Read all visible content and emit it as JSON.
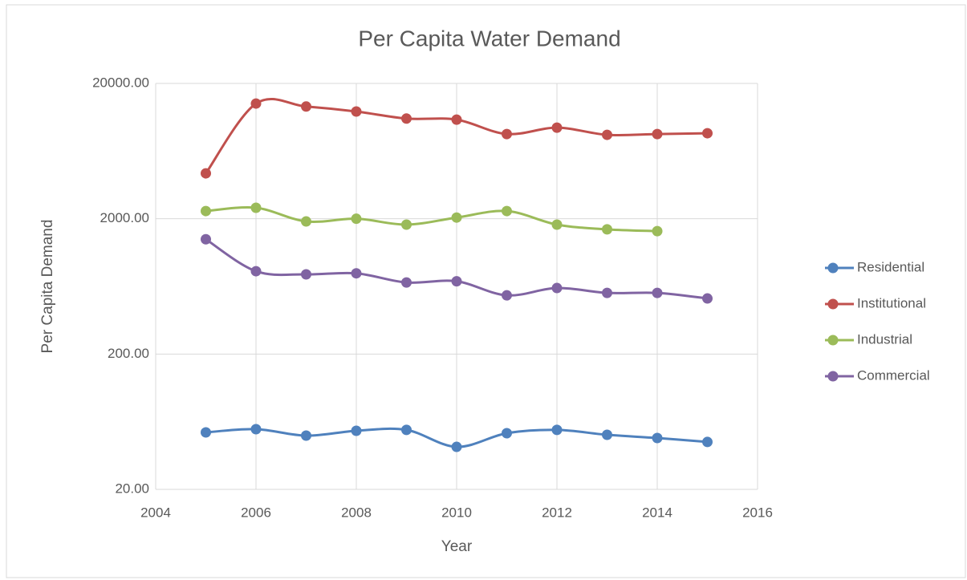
{
  "chart_data": {
    "type": "line",
    "title": "Per Capita Water Demand",
    "x_label": "Year",
    "y_label": "Per Capita Demand",
    "x": [
      2005,
      2006,
      2007,
      2008,
      2009,
      2010,
      2011,
      2012,
      2013,
      2014,
      2015
    ],
    "series": [
      {
        "name": "Residential",
        "color": "#4f81bd",
        "values": [
          52.7,
          55.7,
          49.9,
          54.2,
          55,
          41.2,
          52,
          55,
          50.6,
          47.9,
          44.8
        ]
      },
      {
        "name": "Institutional",
        "color": "#c0504d",
        "values": [
          4330,
          14200,
          13500,
          12400,
          11000,
          10800,
          8450,
          9420,
          8340,
          8450,
          8570
        ]
      },
      {
        "name": "Industrial",
        "color": "#9bbb59",
        "values": [
          2280,
          2410,
          1910,
          2000,
          1810,
          2040,
          2280,
          1810,
          1670,
          1620,
          null
        ]
      },
      {
        "name": "Commercial",
        "color": "#8064a2",
        "values": [
          1410,
          819,
          776,
          790,
          676,
          690,
          543,
          615,
          566,
          566,
          515
        ]
      }
    ],
    "xlim": [
      2004,
      2016
    ],
    "xticks": [
      2004,
      2006,
      2008,
      2010,
      2012,
      2014,
      2016
    ],
    "ylim": [
      20,
      20000
    ],
    "log_y": true,
    "yticks": [
      {
        "value": 20,
        "label": "20.00"
      },
      {
        "value": 200,
        "label": "200.00"
      },
      {
        "value": 2000,
        "label": "2000.00"
      },
      {
        "value": 20000,
        "label": "20000.00"
      }
    ],
    "grid": true,
    "legend": "right"
  }
}
